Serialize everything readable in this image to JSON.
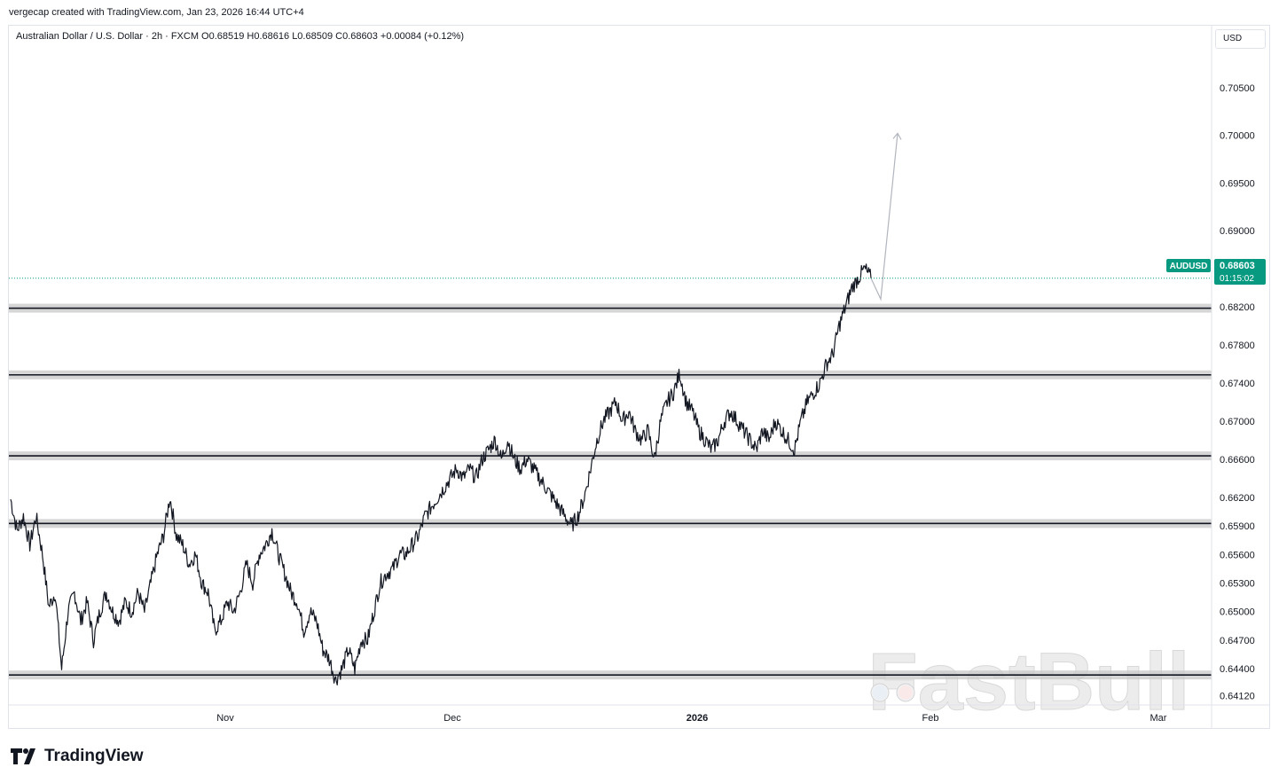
{
  "attribution": "vergecap created with TradingView.com, Jan 23, 2026 16:44 UTC+4",
  "legend": "Australian Dollar / U.S. Dollar · 2h · FXCM  O0.68519  H0.68616  L0.68509  C0.68603  +0.00084 (+0.12%)",
  "currency_button": "USD",
  "brand": "TradingView",
  "watermark": "FastBull",
  "colors": {
    "accent": "#089981",
    "candles": "#131722",
    "sr_zone": "#c8c8c8",
    "forecast_arrow": "#b2b5be"
  },
  "chart_data": {
    "type": "line",
    "symbol": "AUDUSD",
    "price_tag": "0.68603",
    "countdown": "01:15:02",
    "x_tick_labels": [
      "Nov",
      "Dec",
      "2026",
      "Feb",
      "Mar"
    ],
    "y_tick_labels": [
      "0.70500",
      "0.70000",
      "0.69500",
      "0.69000",
      "0.68200",
      "0.67800",
      "0.67400",
      "0.67000",
      "0.66600",
      "0.66200",
      "0.65900",
      "0.65600",
      "0.65300",
      "0.65000",
      "0.64700",
      "0.64400",
      "0.64120"
    ],
    "ylim": [
      0.6402,
      0.7115
    ],
    "series": [
      {
        "values": [
          0.6618,
          0.6585,
          0.66,
          0.657,
          0.66,
          0.656,
          0.6505,
          0.652,
          0.644,
          0.65,
          0.652,
          0.649,
          0.651,
          0.647,
          0.65,
          0.652,
          0.65,
          0.649,
          0.651,
          0.65,
          0.652,
          0.65,
          0.653,
          0.656,
          0.658,
          0.662,
          0.658,
          0.657,
          0.655,
          0.656,
          0.653,
          0.652,
          0.648,
          0.649,
          0.651,
          0.65,
          0.652,
          0.655,
          0.653,
          0.656,
          0.657,
          0.6585,
          0.656,
          0.654,
          0.652,
          0.651,
          0.648,
          0.65,
          0.649,
          0.646,
          0.645,
          0.6428,
          0.644,
          0.646,
          0.644,
          0.647,
          0.647,
          0.65,
          0.653,
          0.654,
          0.6545,
          0.656,
          0.656,
          0.657,
          0.658,
          0.66,
          0.661,
          0.662,
          0.663,
          0.664,
          0.665,
          0.664,
          0.665,
          0.664,
          0.666,
          0.667,
          0.668,
          0.666,
          0.668,
          0.666,
          0.665,
          0.666,
          0.665,
          0.664,
          0.663,
          0.662,
          0.661,
          0.66,
          0.659,
          0.66,
          0.662,
          0.665,
          0.668,
          0.67,
          0.671,
          0.672,
          0.67,
          0.671,
          0.669,
          0.668,
          0.669,
          0.666,
          0.67,
          0.672,
          0.673,
          0.675,
          0.672,
          0.671,
          0.669,
          0.668,
          0.667,
          0.668,
          0.67,
          0.671,
          0.67,
          0.669,
          0.668,
          0.667,
          0.669,
          0.668,
          0.67,
          0.669,
          0.668,
          0.667,
          0.67,
          0.672,
          0.673,
          0.674,
          0.676,
          0.677,
          0.68,
          0.682,
          0.684,
          0.685,
          0.686,
          0.685
        ]
      }
    ],
    "sr_zones": [
      0.68185,
      0.67485,
      0.66635,
      0.65925,
      0.64335
    ],
    "forecast": [
      [
        0.685,
        0.6828
      ],
      [
        0.6828,
        0.7002
      ]
    ]
  }
}
